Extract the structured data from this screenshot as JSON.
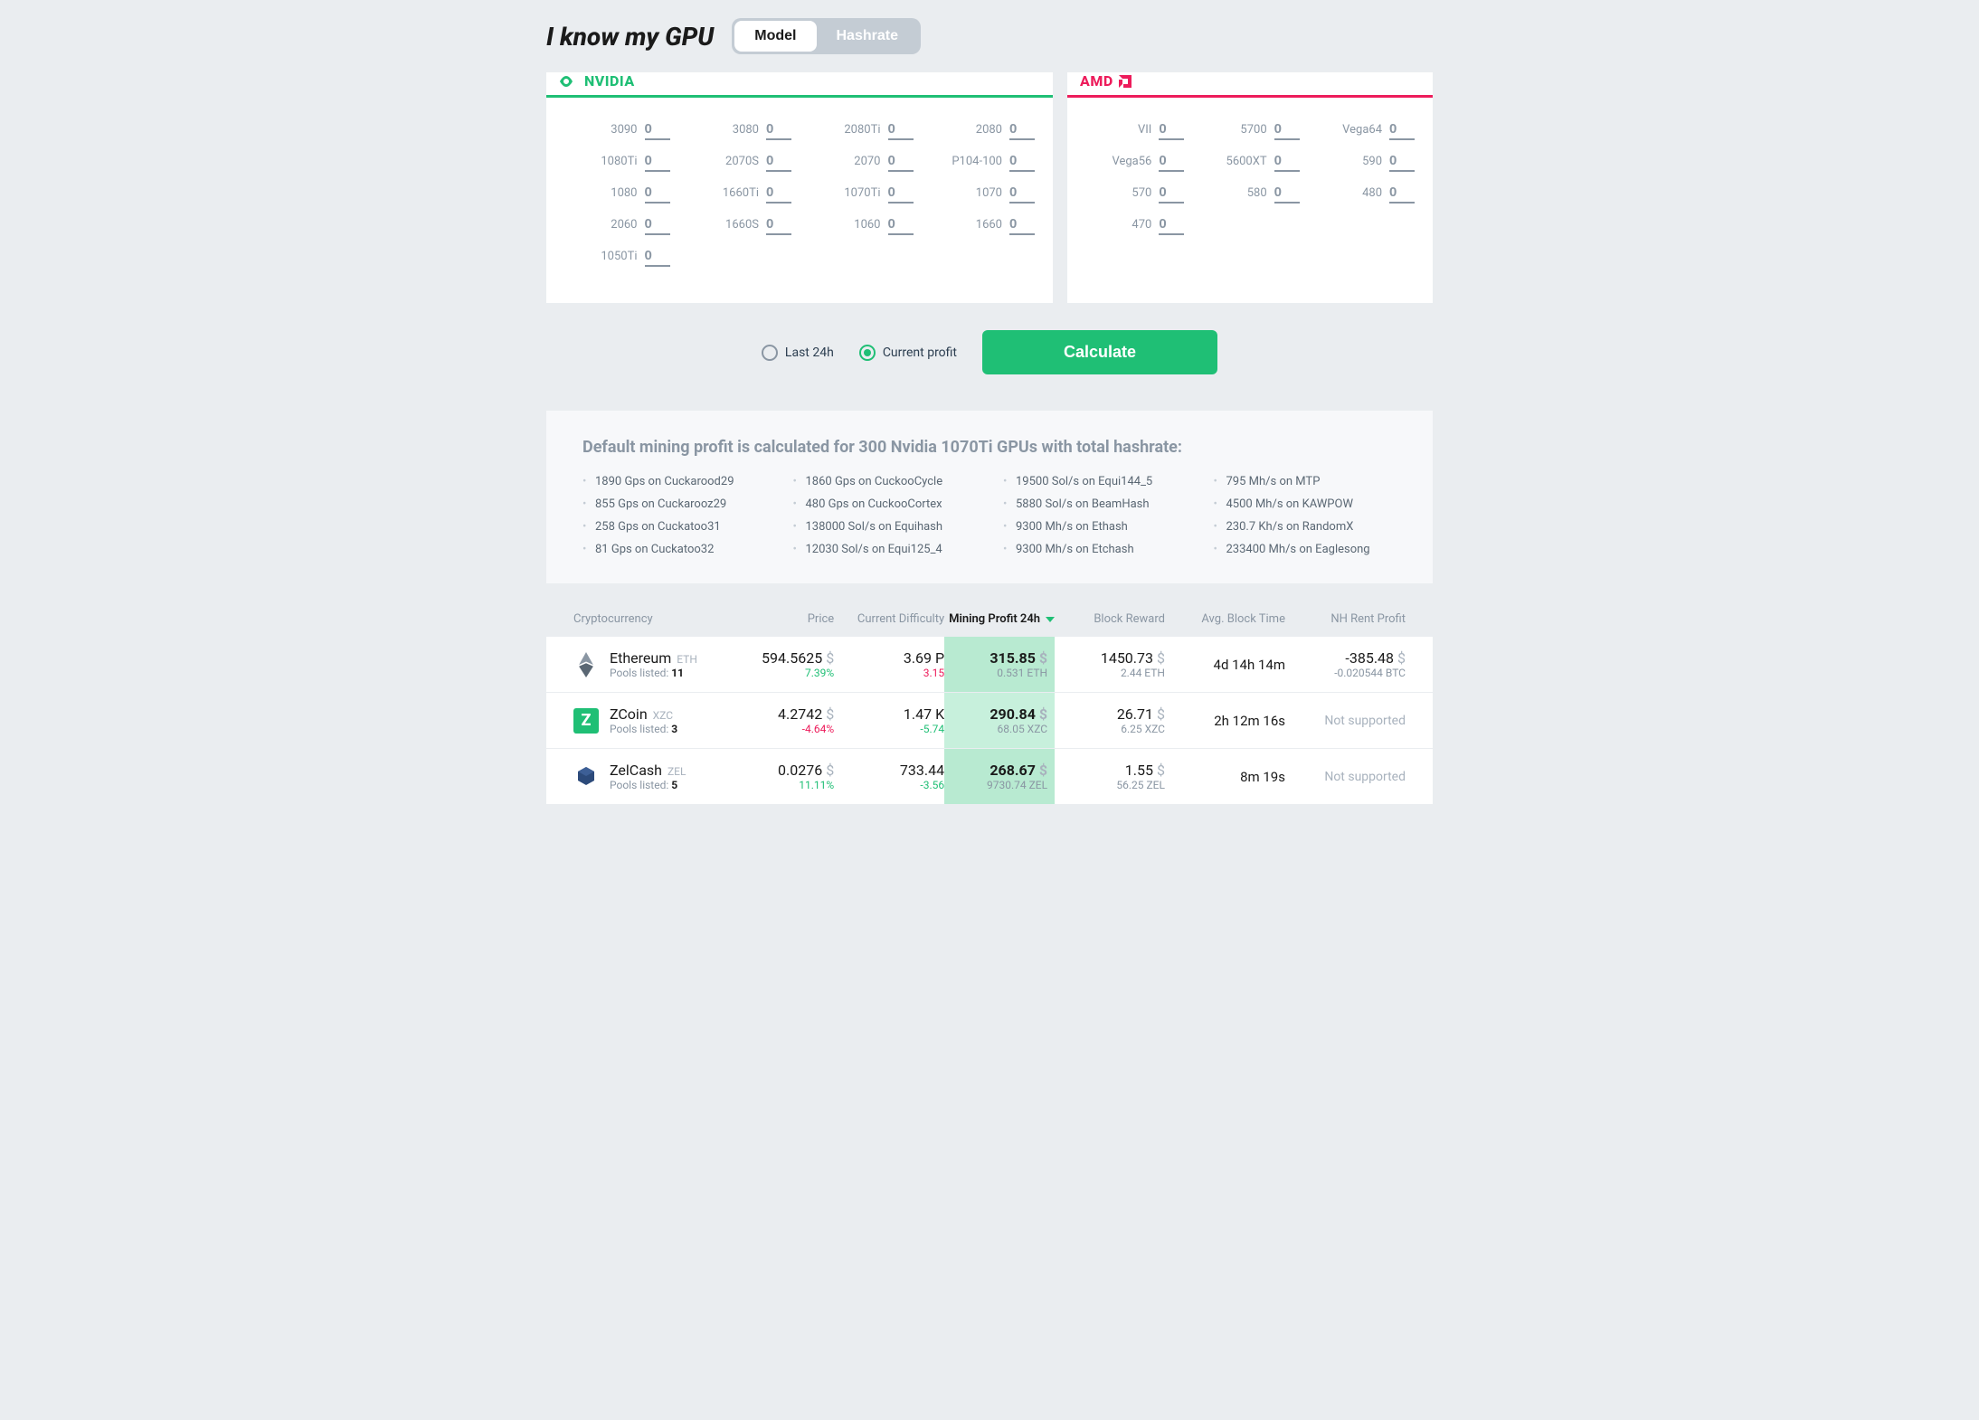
{
  "header": {
    "title": "I know my GPU",
    "toggle": {
      "model": "Model",
      "hashrate": "Hashrate",
      "active": "model"
    }
  },
  "brands": {
    "nvidia": {
      "label": "NVIDIA",
      "color": "#1fbf75"
    },
    "amd": {
      "label": "AMD",
      "color": "#ed1c5b"
    }
  },
  "nvidia_gpus": [
    {
      "label": "3090",
      "value": "0"
    },
    {
      "label": "3080",
      "value": "0"
    },
    {
      "label": "2080Ti",
      "value": "0"
    },
    {
      "label": "2080",
      "value": "0"
    },
    {
      "label": "1080Ti",
      "value": "0"
    },
    {
      "label": "2070S",
      "value": "0"
    },
    {
      "label": "2070",
      "value": "0"
    },
    {
      "label": "P104-100",
      "value": "0"
    },
    {
      "label": "1080",
      "value": "0"
    },
    {
      "label": "1660Ti",
      "value": "0"
    },
    {
      "label": "1070Ti",
      "value": "0"
    },
    {
      "label": "1070",
      "value": "0"
    },
    {
      "label": "2060",
      "value": "0"
    },
    {
      "label": "1660S",
      "value": "0"
    },
    {
      "label": "1060",
      "value": "0"
    },
    {
      "label": "1660",
      "value": "0"
    },
    {
      "label": "1050Ti",
      "value": "0"
    }
  ],
  "amd_gpus": [
    {
      "label": "VII",
      "value": "0"
    },
    {
      "label": "5700",
      "value": "0"
    },
    {
      "label": "Vega64",
      "value": "0"
    },
    {
      "label": "Vega56",
      "value": "0"
    },
    {
      "label": "5600XT",
      "value": "0"
    },
    {
      "label": "590",
      "value": "0"
    },
    {
      "label": "570",
      "value": "0"
    },
    {
      "label": "580",
      "value": "0"
    },
    {
      "label": "480",
      "value": "0"
    },
    {
      "label": "470",
      "value": "0"
    }
  ],
  "controls": {
    "last24h": "Last 24h",
    "current": "Current profit",
    "selected": "current",
    "calculate": "Calculate"
  },
  "info": {
    "title": "Default mining profit is calculated for 300 Nvidia 1070Ti GPUs with total hashrate:",
    "hashrates": [
      "1890 Gps on Cuckarood29",
      "1860 Gps on CuckooCycle",
      "19500 Sol/s on Equi144_5",
      "795 Mh/s on MTP",
      "855 Gps on Cuckarooz29",
      "480 Gps on CuckooCortex",
      "5880 Sol/s on BeamHash",
      "4500 Mh/s on KAWPOW",
      "258 Gps on Cuckatoo31",
      "138000 Sol/s on Equihash",
      "9300 Mh/s on Ethash",
      "230.7 Kh/s on RandomX",
      "81 Gps on Cuckatoo32",
      "12030 Sol/s on Equi125_4",
      "9300 Mh/s on Etchash",
      "233400 Mh/s on Eaglesong"
    ]
  },
  "table": {
    "columns": {
      "crypto": "Cryptocurrency",
      "price": "Price",
      "difficulty": "Current Difficulty",
      "profit": "Mining Profit 24h",
      "reward": "Block Reward",
      "blocktime": "Avg. Block Time",
      "nh": "NH Rent Profit"
    },
    "rows": [
      {
        "name": "Ethereum",
        "ticker": "ETH",
        "pools_label": "Pools listed:",
        "pools": "11",
        "price": "594.5625",
        "price_unit": "$",
        "price_sub": "7.39%",
        "price_sub_class": "green",
        "diff": "3.69 P",
        "diff_sub": "3.15",
        "diff_sub_class": "red",
        "profit": "315.85",
        "profit_unit": "$",
        "profit_sub": "0.531 ETH",
        "reward": "1450.73",
        "reward_unit": "$",
        "reward_sub": "2.44 ETH",
        "blocktime": "4d 14h 14m",
        "nh": "-385.48",
        "nh_unit": "$",
        "nh_sub": "-0.020544 BTC",
        "nh_supported": true,
        "icon": "eth",
        "highlight": "alt"
      },
      {
        "name": "ZCoin",
        "ticker": "XZC",
        "pools_label": "Pools listed:",
        "pools": "3",
        "price": "4.2742",
        "price_unit": "$",
        "price_sub": "-4.64%",
        "price_sub_class": "red",
        "diff": "1.47 K",
        "diff_sub": "-5.74",
        "diff_sub_class": "green",
        "profit": "290.84",
        "profit_unit": "$",
        "profit_sub": "68.05 XZC",
        "reward": "26.71",
        "reward_unit": "$",
        "reward_sub": "6.25 XZC",
        "blocktime": "2h 12m 16s",
        "nh_supported": false,
        "nh_text": "Not supported",
        "icon": "zcoin",
        "highlight": ""
      },
      {
        "name": "ZelCash",
        "ticker": "ZEL",
        "pools_label": "Pools listed:",
        "pools": "5",
        "price": "0.0276",
        "price_unit": "$",
        "price_sub": "11.11%",
        "price_sub_class": "green",
        "diff": "733.44",
        "diff_sub": "-3.56",
        "diff_sub_class": "green",
        "profit": "268.67",
        "profit_unit": "$",
        "profit_sub": "9730.74 ZEL",
        "reward": "1.55",
        "reward_unit": "$",
        "reward_sub": "56.25 ZEL",
        "blocktime": "8m 19s",
        "nh_supported": false,
        "nh_text": "Not supported",
        "icon": "zel",
        "highlight": "alt"
      }
    ]
  }
}
